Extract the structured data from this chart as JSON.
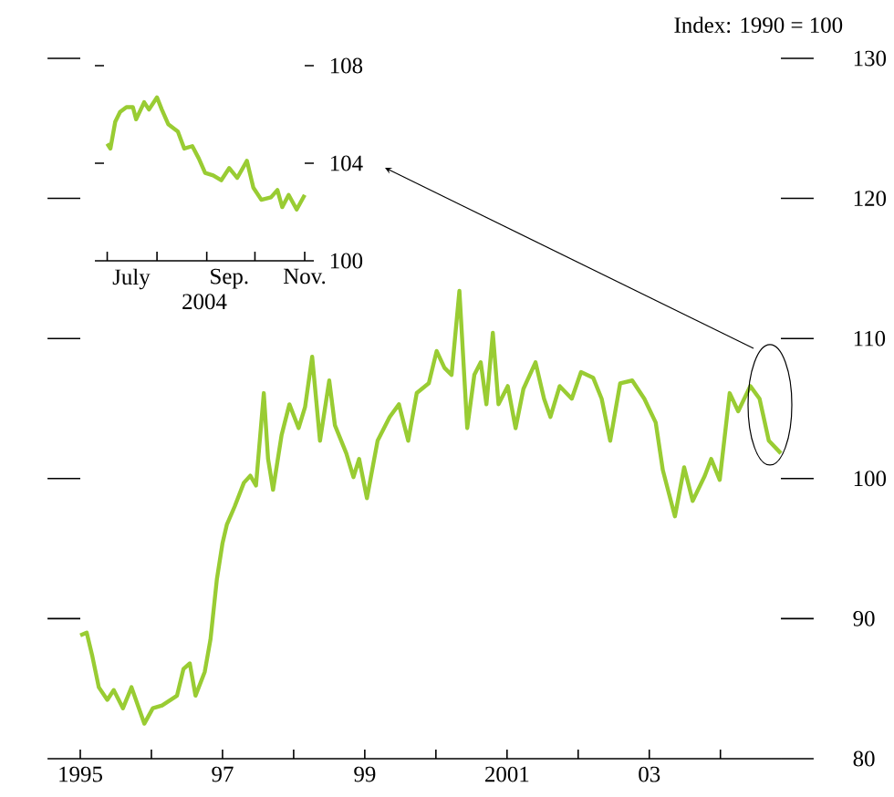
{
  "chart_data": [
    {
      "type": "line",
      "ylabel": "Index:  1990 = 100",
      "color": "#99cc33",
      "x": [
        1995.0,
        1995.09,
        1995.17,
        1995.26,
        1995.38,
        1995.47,
        1995.6,
        1995.72,
        1995.81,
        1995.9,
        1996.02,
        1996.15,
        1996.36,
        1996.45,
        1996.54,
        1996.62,
        1996.75,
        1996.83,
        1996.92,
        1997.0,
        1997.06,
        1997.17,
        1997.3,
        1997.39,
        1997.47,
        1997.58,
        1997.64,
        1997.71,
        1997.83,
        1997.94,
        1998.07,
        1998.16,
        1998.26,
        1998.37,
        1998.5,
        1998.58,
        1998.74,
        1998.84,
        1998.92,
        1999.03,
        1999.18,
        1999.35,
        1999.48,
        1999.61,
        1999.73,
        1999.9,
        2000.01,
        2000.12,
        2000.22,
        2000.33,
        2000.44,
        2000.54,
        2000.63,
        2000.71,
        2000.8,
        2000.88,
        2001.01,
        2001.12,
        2001.23,
        2001.4,
        2001.52,
        2001.61,
        2001.74,
        2001.91,
        2002.04,
        2002.21,
        2002.33,
        2002.45,
        2002.59,
        2002.76,
        2002.93,
        2003.09,
        2003.19,
        2003.36,
        2003.49,
        2003.61,
        2003.78,
        2003.87,
        2003.99,
        2004.13,
        2004.25,
        2004.42,
        2004.55,
        2004.68,
        2004.85
      ],
      "values": [
        88.8,
        89.0,
        87.3,
        85.1,
        84.2,
        84.9,
        83.6,
        85.1,
        83.8,
        82.5,
        83.6,
        83.8,
        84.5,
        86.4,
        86.8,
        84.5,
        86.2,
        88.5,
        92.8,
        95.4,
        96.7,
        98.0,
        99.7,
        100.2,
        99.5,
        106.1,
        101.4,
        99.2,
        103.1,
        105.3,
        103.6,
        105.1,
        108.7,
        102.7,
        107.0,
        103.8,
        101.8,
        100.1,
        101.4,
        98.6,
        102.7,
        104.4,
        105.3,
        102.7,
        106.1,
        106.8,
        109.1,
        107.9,
        107.4,
        113.4,
        103.6,
        107.4,
        108.3,
        105.3,
        110.4,
        105.3,
        106.6,
        103.6,
        106.4,
        108.3,
        105.7,
        104.4,
        106.6,
        105.7,
        107.6,
        107.2,
        105.7,
        102.7,
        106.8,
        107.0,
        105.7,
        104.0,
        100.6,
        97.3,
        100.8,
        98.4,
        100.2,
        101.4,
        99.9,
        106.1,
        104.8,
        106.6,
        105.7,
        102.7,
        101.8
      ],
      "xlim": [
        1995,
        2004.85
      ],
      "ylim": [
        80,
        130
      ],
      "xticks": [
        {
          "value": 1995,
          "label": "1995"
        },
        {
          "value": 1997,
          "label": "97"
        },
        {
          "value": 1999,
          "label": "99"
        },
        {
          "value": 2001,
          "label": "2001"
        },
        {
          "value": 2003,
          "label": "03"
        }
      ],
      "yticks": [
        80,
        90,
        100,
        110,
        120,
        130
      ]
    },
    {
      "type": "line",
      "xlabel": "2004",
      "color": "#99cc33",
      "x": [
        "2004-07-01",
        "2004-07-03",
        "2004-07-06",
        "2004-07-09",
        "2004-07-13",
        "2004-07-17",
        "2004-07-19",
        "2004-07-24",
        "2004-07-27",
        "2004-08-01",
        "2004-08-04",
        "2004-08-08",
        "2004-08-14",
        "2004-08-18",
        "2004-08-23",
        "2004-08-27",
        "2004-08-31",
        "2004-09-05",
        "2004-09-10",
        "2004-09-15",
        "2004-09-20",
        "2004-09-26",
        "2004-09-30",
        "2004-10-05",
        "2004-10-11",
        "2004-10-15",
        "2004-10-18",
        "2004-10-22",
        "2004-10-27",
        "2004-11-01"
      ],
      "values": [
        104.8,
        104.6,
        105.7,
        106.1,
        106.3,
        106.3,
        105.8,
        106.5,
        106.2,
        106.7,
        106.2,
        105.6,
        105.3,
        104.6,
        104.7,
        104.2,
        103.6,
        103.5,
        103.3,
        103.8,
        103.4,
        104.1,
        103.0,
        102.5,
        102.6,
        102.9,
        102.2,
        102.7,
        102.1,
        102.7
      ],
      "xlim": [
        "2004-06-29",
        "2004-11-01"
      ],
      "ylim": [
        100,
        108
      ],
      "xticks": [
        {
          "value": "2004-07-01",
          "label": null
        },
        {
          "value": "2004-08-01",
          "label": null
        },
        {
          "value": "2004-09-01",
          "label": null
        },
        {
          "value": "2004-10-01",
          "label": null
        },
        {
          "value": "2004-11-01",
          "label": null
        },
        {
          "value": "2004-07-16",
          "label": "July"
        },
        {
          "value": "2004-09-15",
          "label": "Sep."
        },
        {
          "value": "2004-11-01",
          "label": "Nov."
        }
      ],
      "yticks": [
        100,
        104,
        108
      ]
    }
  ]
}
